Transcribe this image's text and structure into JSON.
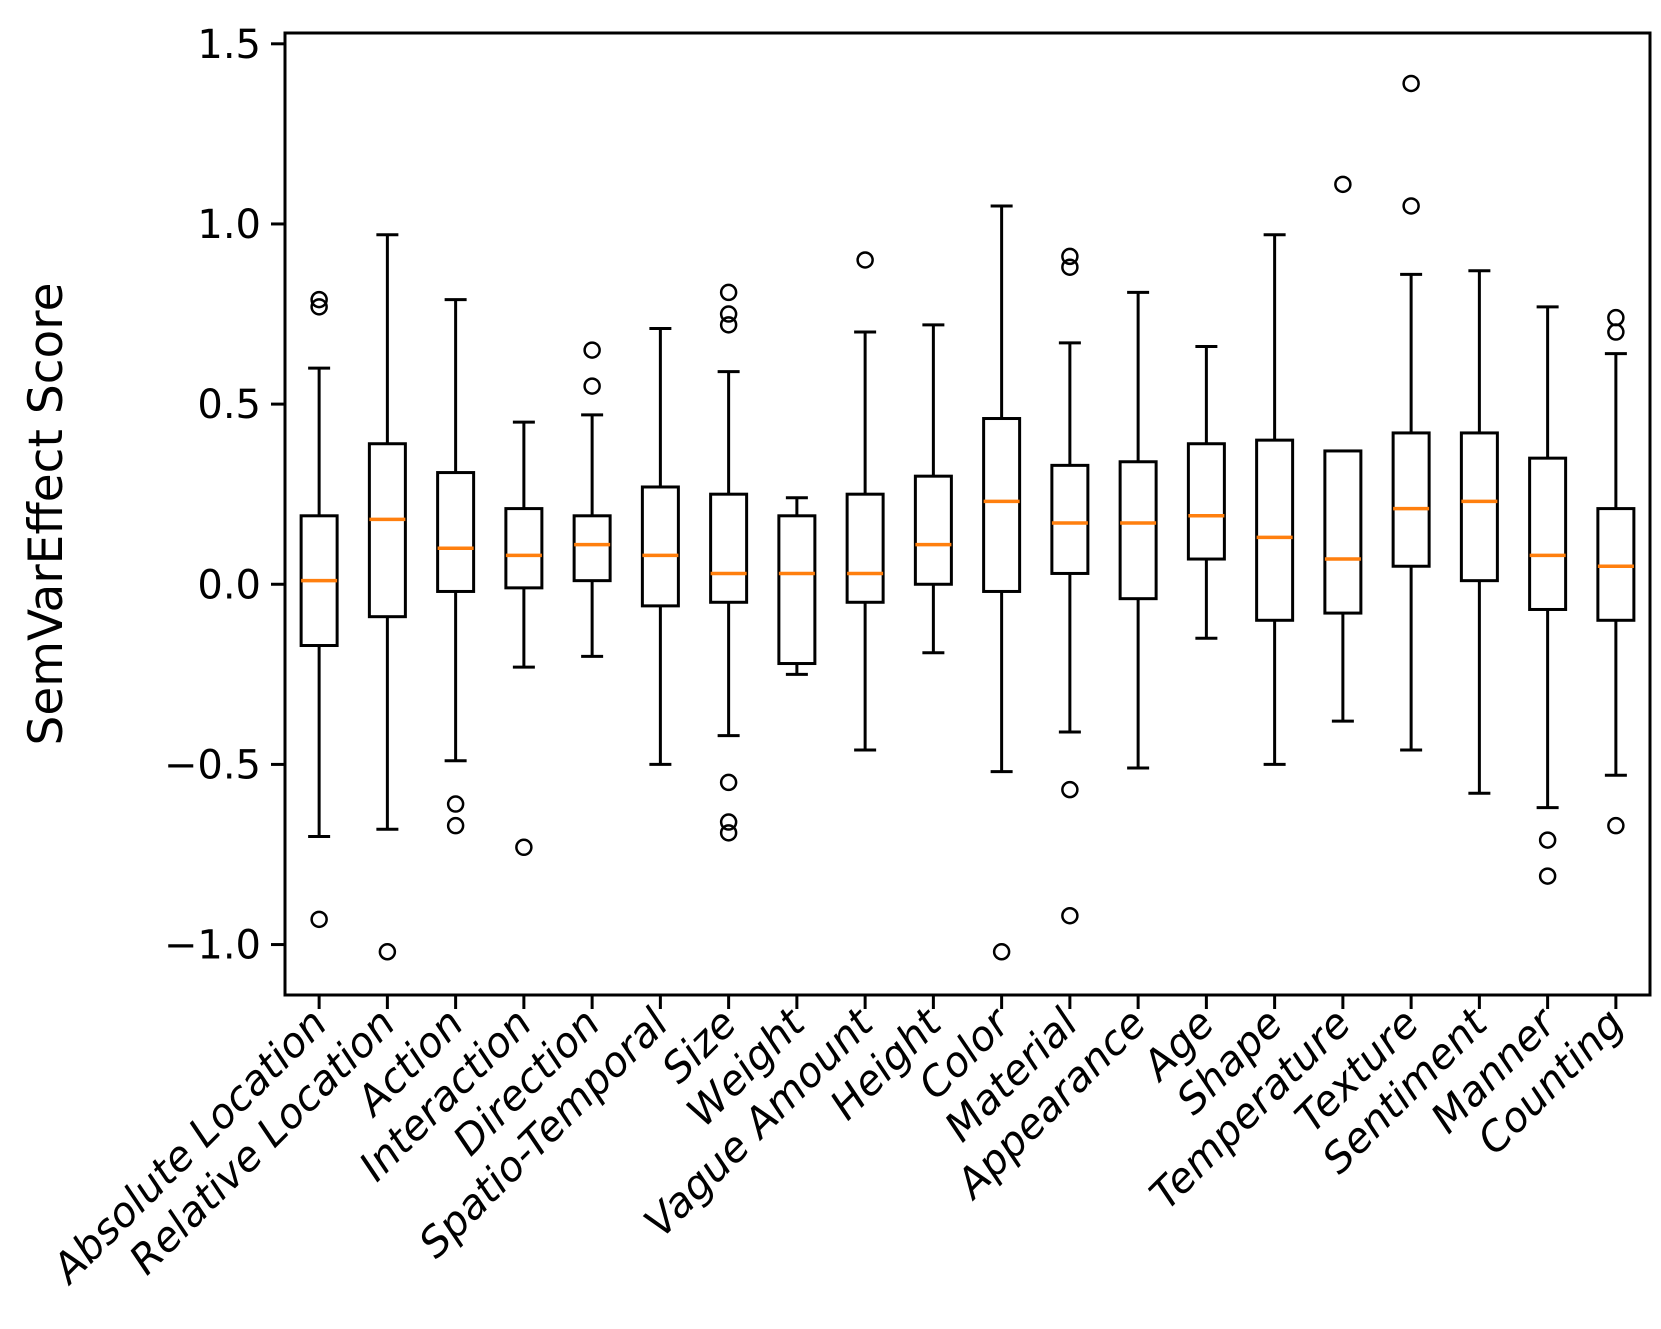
{
  "chart_data": {
    "type": "boxplot",
    "title": "",
    "ylabel": "SemVarEffect Score",
    "xlabel": "",
    "grid": false,
    "legend": null,
    "ylim": [
      -1.14,
      1.53
    ],
    "yticks": [
      -1.0,
      -0.5,
      0.0,
      0.5,
      1.0,
      1.5
    ],
    "ytick_labels": [
      "−1.0",
      "−0.5",
      "0.0",
      "0.5",
      "1.0",
      "1.5"
    ],
    "box_color": "#000000",
    "median_color": "#ff7f0e",
    "categories": [
      "Absolute Location",
      "Relative Location",
      "Action",
      "Interaction",
      "Direction",
      "Spatio-Temporal",
      "Size",
      "Weight",
      "Vague Amount",
      "Height",
      "Color",
      "Material",
      "Appearance",
      "Age",
      "Shape",
      "Temperature",
      "Texture",
      "Sentiment",
      "Manner",
      "Counting"
    ],
    "boxes": [
      {
        "label": "Absolute Location",
        "whislo": -0.7,
        "q1": -0.17,
        "med": 0.01,
        "q3": 0.19,
        "whishi": 0.6,
        "fliers": [
          0.79,
          0.77,
          -0.93
        ]
      },
      {
        "label": "Relative Location",
        "whislo": -0.68,
        "q1": -0.09,
        "med": 0.18,
        "q3": 0.39,
        "whishi": 0.97,
        "fliers": [
          -1.02
        ]
      },
      {
        "label": "Action",
        "whislo": -0.49,
        "q1": -0.02,
        "med": 0.1,
        "q3": 0.31,
        "whishi": 0.79,
        "fliers": [
          -0.61,
          -0.67
        ]
      },
      {
        "label": "Interaction",
        "whislo": -0.23,
        "q1": -0.01,
        "med": 0.08,
        "q3": 0.21,
        "whishi": 0.45,
        "fliers": [
          -0.73
        ]
      },
      {
        "label": "Direction",
        "whislo": -0.2,
        "q1": 0.01,
        "med": 0.11,
        "q3": 0.19,
        "whishi": 0.47,
        "fliers": [
          0.65,
          0.55
        ]
      },
      {
        "label": "Spatio-Temporal",
        "whislo": -0.5,
        "q1": -0.06,
        "med": 0.08,
        "q3": 0.27,
        "whishi": 0.71,
        "fliers": []
      },
      {
        "label": "Size",
        "whislo": -0.42,
        "q1": -0.05,
        "med": 0.03,
        "q3": 0.25,
        "whishi": 0.59,
        "fliers": [
          0.81,
          0.75,
          0.72,
          -0.55,
          -0.66,
          -0.69
        ]
      },
      {
        "label": "Weight",
        "whislo": -0.25,
        "q1": -0.22,
        "med": 0.03,
        "q3": 0.19,
        "whishi": 0.24,
        "fliers": []
      },
      {
        "label": "Vague Amount",
        "whislo": -0.46,
        "q1": -0.05,
        "med": 0.03,
        "q3": 0.25,
        "whishi": 0.7,
        "fliers": [
          0.9
        ]
      },
      {
        "label": "Height",
        "whislo": -0.19,
        "q1": 0.0,
        "med": 0.11,
        "q3": 0.3,
        "whishi": 0.72,
        "fliers": []
      },
      {
        "label": "Color",
        "whislo": -0.52,
        "q1": -0.02,
        "med": 0.23,
        "q3": 0.46,
        "whishi": 1.05,
        "fliers": [
          -1.02
        ]
      },
      {
        "label": "Material",
        "whislo": -0.41,
        "q1": 0.03,
        "med": 0.17,
        "q3": 0.33,
        "whishi": 0.67,
        "fliers": [
          0.91,
          0.88,
          -0.57,
          -0.92
        ]
      },
      {
        "label": "Appearance",
        "whislo": -0.51,
        "q1": -0.04,
        "med": 0.17,
        "q3": 0.34,
        "whishi": 0.81,
        "fliers": []
      },
      {
        "label": "Age",
        "whislo": -0.15,
        "q1": 0.07,
        "med": 0.19,
        "q3": 0.39,
        "whishi": 0.66,
        "fliers": []
      },
      {
        "label": "Shape",
        "whislo": -0.5,
        "q1": -0.1,
        "med": 0.13,
        "q3": 0.4,
        "whishi": 0.97,
        "fliers": []
      },
      {
        "label": "Temperature",
        "whislo": -0.38,
        "q1": -0.08,
        "med": 0.07,
        "q3": 0.37,
        "whishi": 0.37,
        "fliers": [
          1.11
        ]
      },
      {
        "label": "Texture",
        "whislo": -0.46,
        "q1": 0.05,
        "med": 0.21,
        "q3": 0.42,
        "whishi": 0.86,
        "fliers": [
          1.39,
          1.05
        ]
      },
      {
        "label": "Sentiment",
        "whislo": -0.58,
        "q1": 0.01,
        "med": 0.23,
        "q3": 0.42,
        "whishi": 0.87,
        "fliers": []
      },
      {
        "label": "Manner",
        "whislo": -0.62,
        "q1": -0.07,
        "med": 0.08,
        "q3": 0.35,
        "whishi": 0.77,
        "fliers": [
          -0.71,
          -0.81
        ]
      },
      {
        "label": "Counting",
        "whislo": -0.53,
        "q1": -0.1,
        "med": 0.05,
        "q3": 0.21,
        "whishi": 0.64,
        "fliers": [
          0.74,
          0.7,
          -0.67
        ]
      }
    ]
  }
}
